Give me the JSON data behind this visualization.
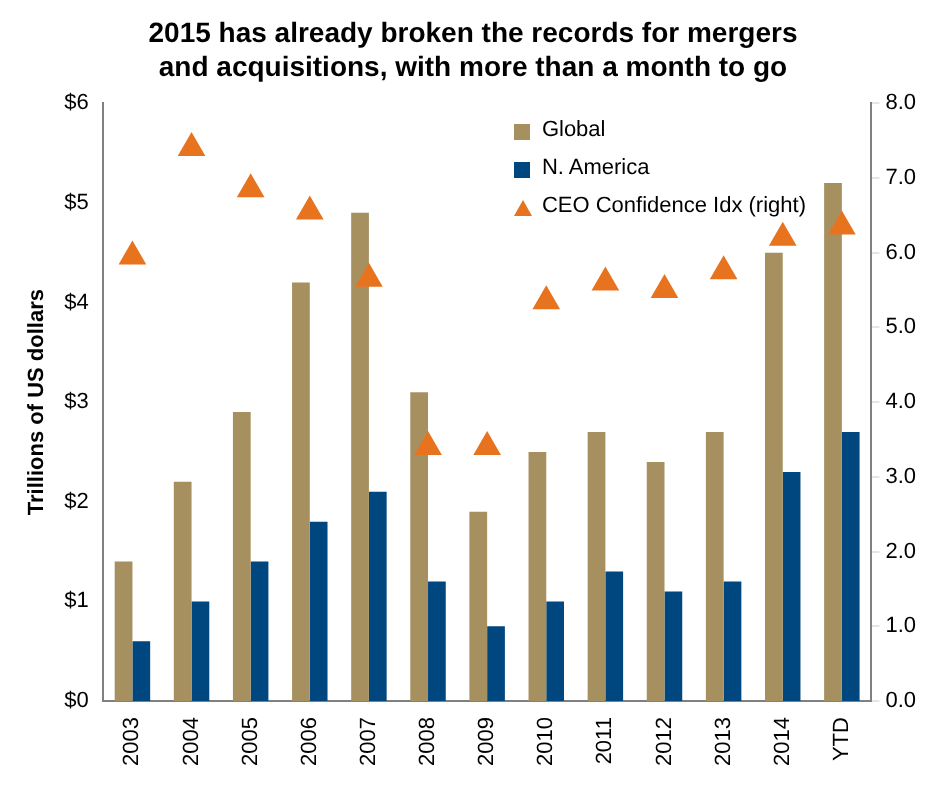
{
  "chart_data": {
    "type": "bar",
    "title": "2015 has already broken the records for mergers and acquisitions, with more than a month to go",
    "ylabel": "Trillions of US dollars",
    "categories": [
      "2003",
      "2004",
      "2005",
      "2006",
      "2007",
      "2008",
      "2009",
      "2010",
      "2011",
      "2012",
      "2013",
      "2014",
      "YTD"
    ],
    "series": [
      {
        "name": "Global",
        "color": "#a69060",
        "values": [
          1.4,
          2.2,
          2.9,
          4.2,
          4.9,
          3.1,
          1.9,
          2.5,
          2.7,
          2.4,
          2.7,
          4.5,
          5.2
        ]
      },
      {
        "name": "N. America",
        "color": "#00467f",
        "values": [
          0.6,
          1.0,
          1.4,
          1.8,
          2.1,
          1.2,
          0.75,
          1.0,
          1.3,
          1.1,
          1.2,
          2.3,
          2.7
        ]
      },
      {
        "name": "CEO Confidence Idx (right)",
        "type": "scatter",
        "axis": "y2",
        "marker": "triangle",
        "color": "#e8731f",
        "values": [
          5.95,
          7.4,
          6.85,
          6.55,
          5.65,
          3.4,
          3.4,
          5.35,
          5.6,
          5.5,
          5.75,
          6.2,
          6.35
        ]
      }
    ],
    "ylim": [
      0,
      6
    ],
    "yticks": [
      {
        "value": 0,
        "label": "$0"
      },
      {
        "value": 1,
        "label": "$1"
      },
      {
        "value": 2,
        "label": "$2"
      },
      {
        "value": 3,
        "label": "$3"
      },
      {
        "value": 4,
        "label": "$4"
      },
      {
        "value": 5,
        "label": "$5"
      },
      {
        "value": 6,
        "label": "$6"
      }
    ],
    "y2lim": [
      0,
      8
    ],
    "y2ticks": [
      {
        "value": 0,
        "label": "0.0"
      },
      {
        "value": 1,
        "label": "1.0"
      },
      {
        "value": 2,
        "label": "2.0"
      },
      {
        "value": 3,
        "label": "3.0"
      },
      {
        "value": 4,
        "label": "4.0"
      },
      {
        "value": 5,
        "label": "5.0"
      },
      {
        "value": 6,
        "label": "6.0"
      },
      {
        "value": 7,
        "label": "7.0"
      },
      {
        "value": 8,
        "label": "8.0"
      }
    ],
    "grid": false,
    "legend": "top right"
  }
}
